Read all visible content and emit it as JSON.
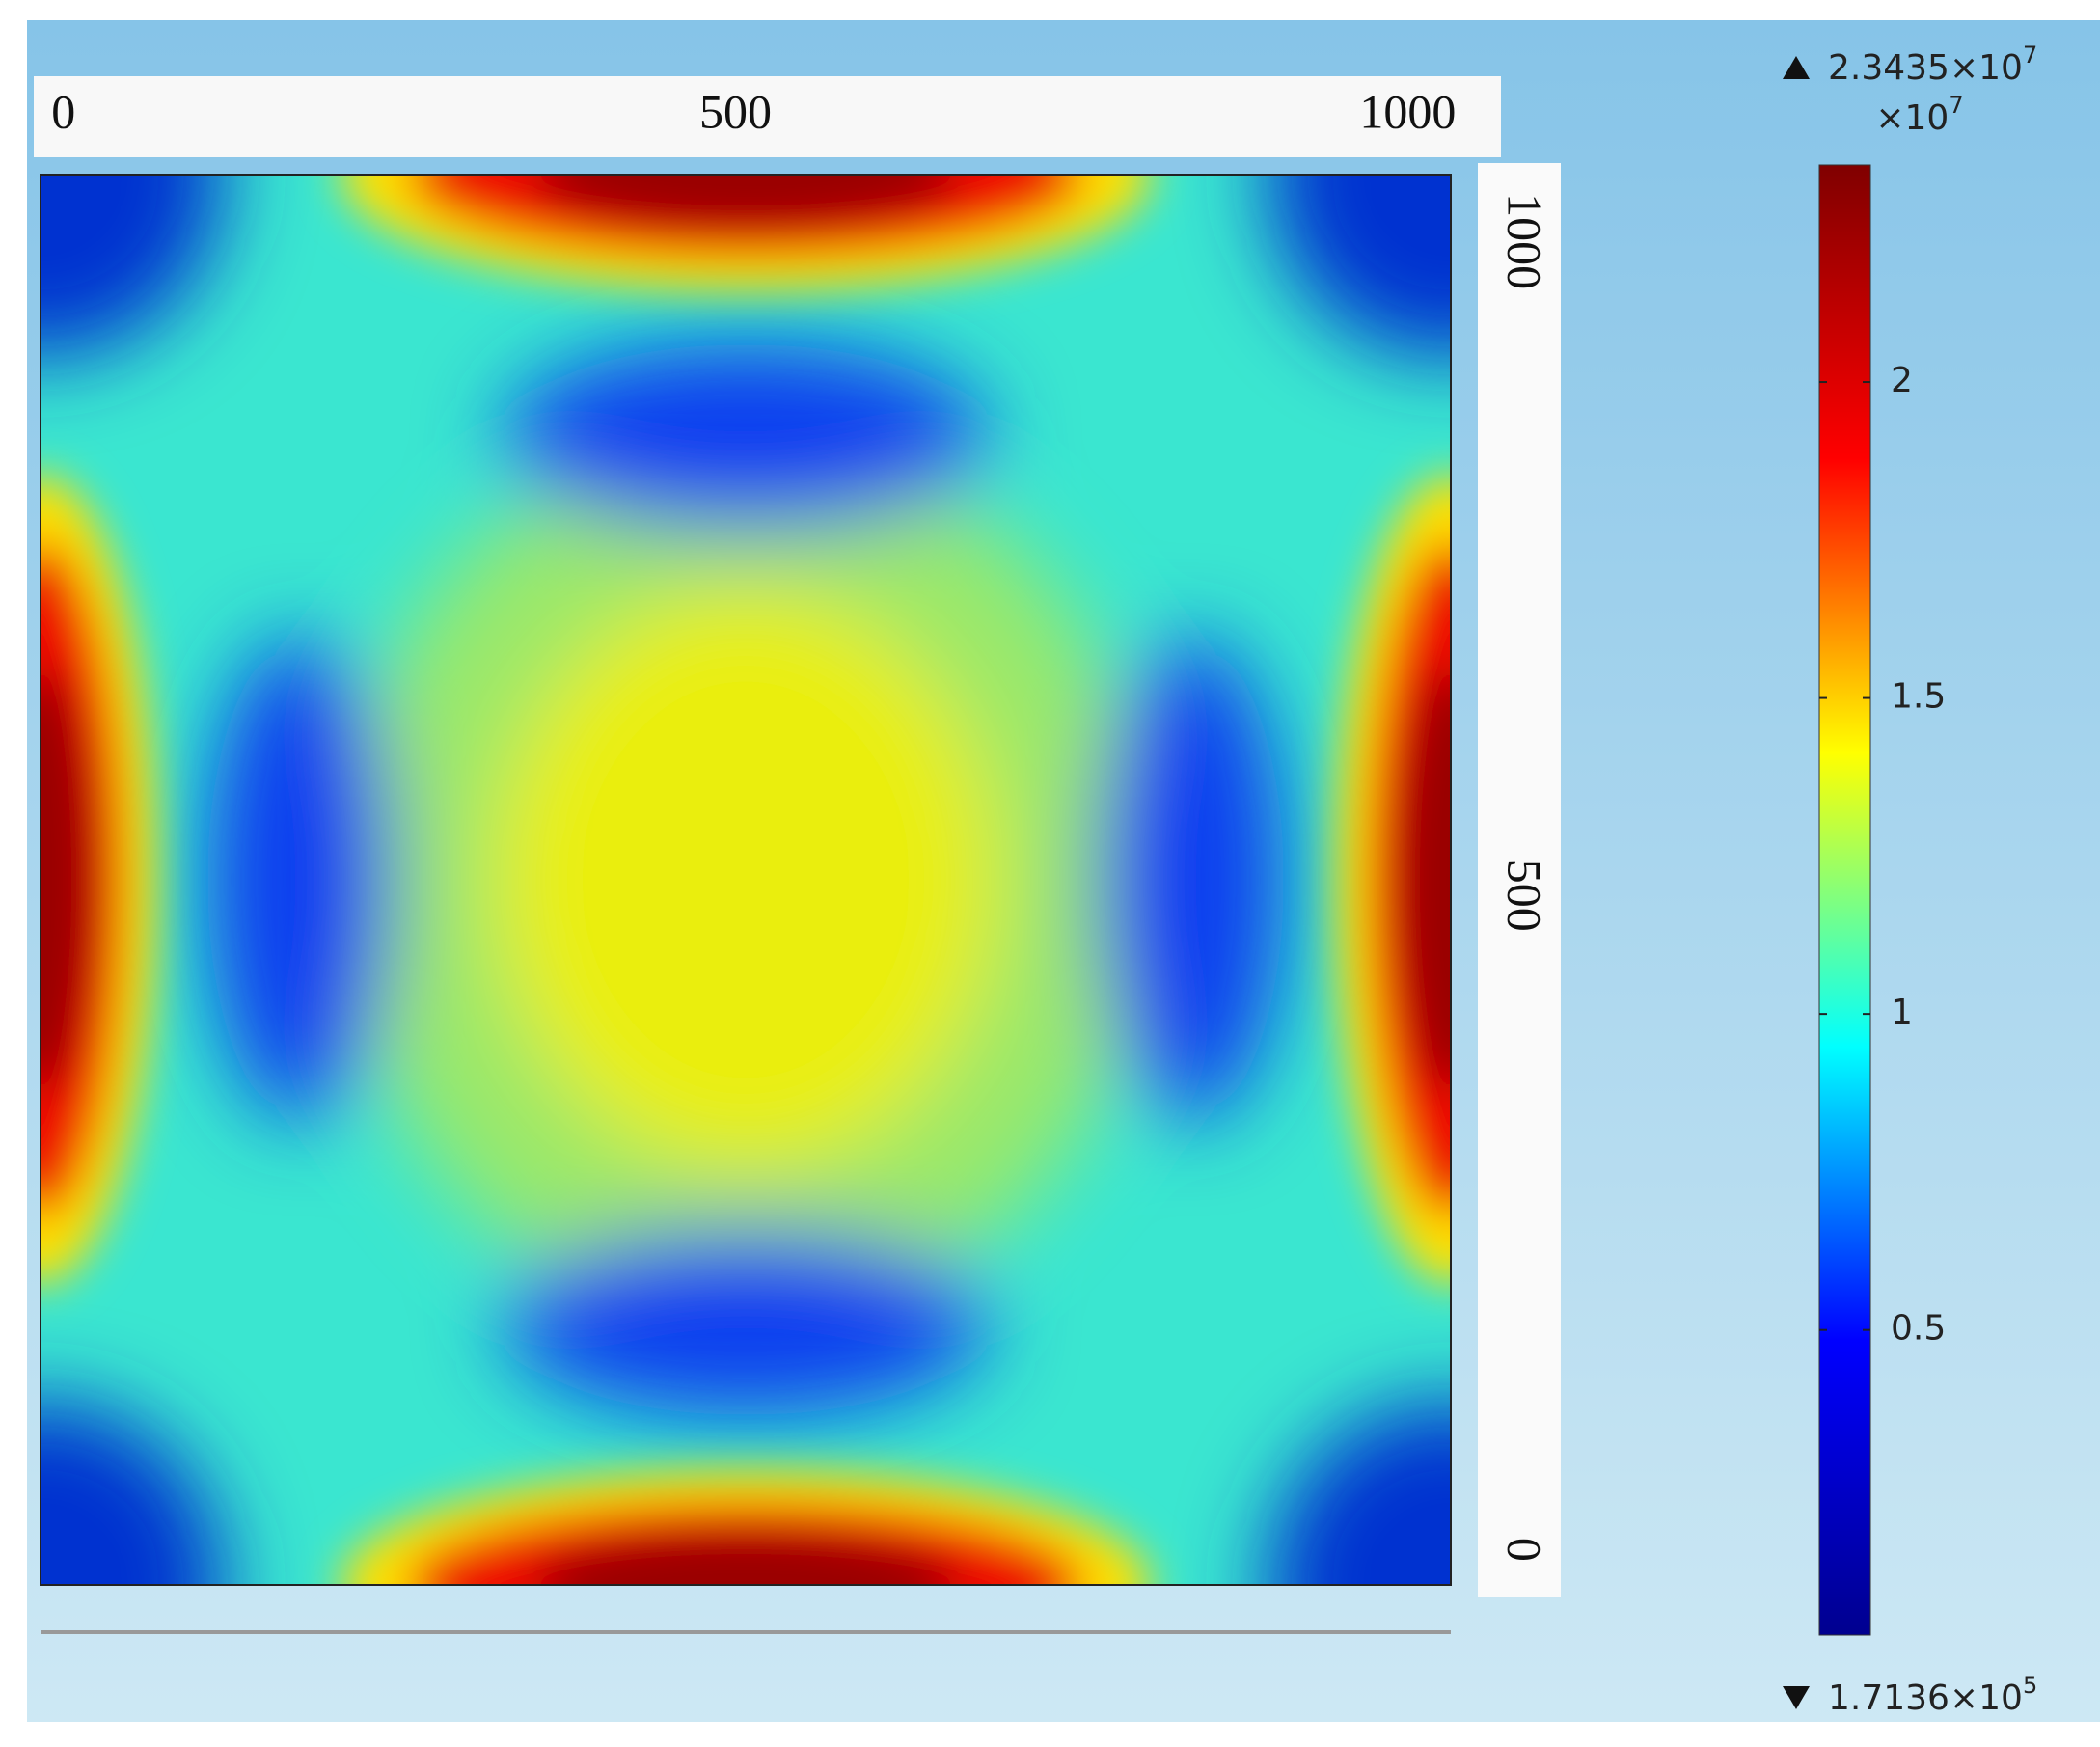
{
  "chart_data": {
    "type": "surface",
    "xlim": [
      -17,
      1032
    ],
    "xticks": [
      0,
      500,
      1000
    ],
    "ylim": [
      -27,
      1051
    ],
    "yticks": [
      0,
      500,
      1000
    ],
    "colorbar": {
      "lim": [
        0.017136,
        2.3435
      ],
      "ticks": [
        0.5,
        1,
        1.5,
        2
      ],
      "multiplier": {
        "text": "×10",
        "exponent": "7"
      },
      "max": {
        "value": 2.3435,
        "text": "2.3435×10",
        "exponent": "7"
      },
      "min": {
        "value": 0.017136,
        "text": "1.7136×10",
        "exponent": "5"
      },
      "colormap": [
        "#00008f",
        "#0000ff",
        "#00ffff",
        "#ffff00",
        "#ff0000",
        "#800000"
      ]
    }
  }
}
